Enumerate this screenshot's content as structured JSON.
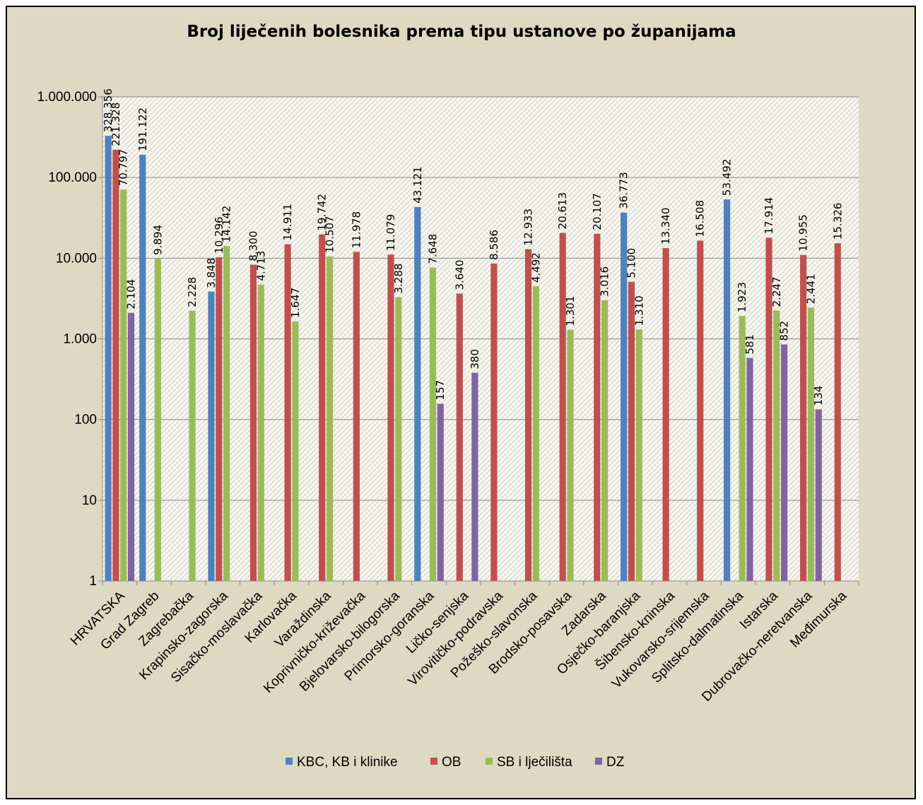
{
  "chart_data": {
    "type": "bar",
    "title": "Broj liječenih bolesnika prema tipu ustanove po županijama",
    "y_scale": "log",
    "ylim": [
      1,
      1000000
    ],
    "y_ticks": [
      "1",
      "10",
      "100",
      "1.000",
      "10.000",
      "100.000",
      "1.000.000"
    ],
    "grid": true,
    "legend_position": "bottom",
    "categories": [
      "HRVATSKA",
      "Grad Zagreb",
      "Zagrebačka",
      "Krapinsko-zagorska",
      "Sisačko-moslavačka",
      "Karlovačka",
      "Varaždinska",
      "Koprivničko-križevačka",
      "Bjelovarsko-bilogorska",
      "Primorsko-goranska",
      "Ličko-senjska",
      "Virovitičko-podravska",
      "Požeško-slavonska",
      "Brodsko-posavska",
      "Zadarska",
      "Osječko-baranjska",
      "Šibensko-kninska",
      "Vukovarsko-srijemska",
      "Splitsko-dalmatinska",
      "Istarska",
      "Dubrovačko-neretvanska",
      "Međimurska"
    ],
    "series": [
      {
        "name": "KBC, KB i klinike",
        "color": "#4f81bd",
        "values": [
          328356,
          191122,
          null,
          3848,
          null,
          null,
          null,
          null,
          null,
          43121,
          null,
          null,
          null,
          null,
          null,
          36773,
          null,
          null,
          53492,
          null,
          null,
          null
        ],
        "labels": [
          "328.356",
          "191.122",
          "",
          "3.848",
          "",
          "",
          "",
          "",
          "",
          "43.121",
          "",
          "",
          "",
          "",
          "",
          "36.773",
          "",
          "",
          "53.492",
          "",
          "",
          ""
        ]
      },
      {
        "name": "OB",
        "color": "#c0504d",
        "values": [
          221328,
          null,
          null,
          10296,
          8300,
          14911,
          19742,
          11978,
          11079,
          null,
          3640,
          8586,
          12933,
          20613,
          20107,
          5100,
          13340,
          16508,
          null,
          17914,
          10955,
          15326
        ],
        "labels": [
          "221.328",
          "",
          "",
          "10.296",
          "8.300",
          "14.911",
          "19.742",
          "11.978",
          "11.079",
          "",
          "3.640",
          "8.586",
          "12.933",
          "20.613",
          "20.107",
          "5.100",
          "13.340",
          "16.508",
          "",
          "17.914",
          "10.955",
          "15.326"
        ]
      },
      {
        "name": "SB i lječilišta",
        "color": "#9bbb59",
        "values": [
          70797,
          9894,
          2228,
          14142,
          4713,
          1647,
          10507,
          null,
          3288,
          7648,
          null,
          null,
          4492,
          1301,
          3016,
          1310,
          null,
          null,
          1923,
          2247,
          2441,
          null
        ],
        "labels": [
          "70.797",
          "9.894",
          "2.228",
          "14.142",
          "4.713",
          "1.647",
          "10.507",
          "",
          "3.288",
          "7.648",
          "",
          "",
          "4.492",
          "1.301",
          "3.016",
          "1.310",
          "",
          "",
          "1.923",
          "2.247",
          "2.441",
          ""
        ]
      },
      {
        "name": "DZ",
        "color": "#8064a2",
        "values": [
          2104,
          null,
          null,
          null,
          null,
          null,
          null,
          null,
          null,
          157,
          380,
          null,
          null,
          null,
          null,
          null,
          null,
          null,
          581,
          852,
          134,
          null
        ],
        "labels": [
          "2.104",
          "",
          "",
          "",
          "",
          "",
          "",
          "",
          "",
          "157",
          "380",
          "",
          "",
          "",
          "",
          "",
          "",
          "",
          "581",
          "852",
          "134",
          ""
        ]
      }
    ]
  }
}
